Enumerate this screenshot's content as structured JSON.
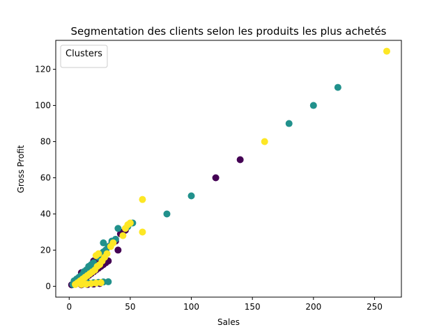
{
  "chart_data": {
    "type": "scatter",
    "title": "Segmentation des clients selon les produits les plus achetés",
    "xlabel": "Sales",
    "ylabel": "Gross Profit",
    "xlim": [
      -11,
      272
    ],
    "ylim": [
      -6,
      136
    ],
    "x_ticks": [
      0,
      50,
      100,
      150,
      200,
      250
    ],
    "y_ticks": [
      0,
      20,
      40,
      60,
      80,
      100,
      120
    ],
    "grid": false,
    "legend": {
      "title": "Clusters",
      "placement": "top-left",
      "entries": []
    },
    "colors": {
      "cluster_0": "#440154",
      "cluster_1": "#21918c",
      "cluster_2": "#fde725"
    },
    "series": [
      {
        "cluster": 0,
        "points": [
          [
            2,
            0.8
          ],
          [
            3,
            1
          ],
          [
            4,
            1.5
          ],
          [
            5,
            2
          ],
          [
            6,
            2.5
          ],
          [
            8,
            3
          ],
          [
            10,
            4
          ],
          [
            12,
            4.5
          ],
          [
            14,
            5
          ],
          [
            16,
            6
          ],
          [
            18,
            7
          ],
          [
            20,
            8
          ],
          [
            22,
            9
          ],
          [
            24,
            10
          ],
          [
            26,
            11
          ],
          [
            28,
            12
          ],
          [
            30,
            13
          ],
          [
            32,
            14
          ],
          [
            10,
            7.5
          ],
          [
            12,
            8
          ],
          [
            20,
            14
          ],
          [
            22,
            15
          ],
          [
            25,
            17
          ],
          [
            30,
            20
          ],
          [
            35,
            24
          ],
          [
            38,
            25
          ],
          [
            40,
            20
          ],
          [
            42,
            29
          ],
          [
            44,
            30
          ],
          [
            46,
            31
          ],
          [
            15,
            1
          ],
          [
            20,
            1.2
          ],
          [
            25,
            1.5
          ],
          [
            10,
            0.8
          ],
          [
            120,
            60
          ],
          [
            140,
            70
          ]
        ]
      },
      {
        "cluster": 1,
        "points": [
          [
            3,
            1
          ],
          [
            5,
            2
          ],
          [
            7,
            3
          ],
          [
            9,
            4
          ],
          [
            11,
            5
          ],
          [
            13,
            6
          ],
          [
            15,
            7
          ],
          [
            17,
            8
          ],
          [
            19,
            9
          ],
          [
            21,
            10
          ],
          [
            4,
            3
          ],
          [
            6,
            4
          ],
          [
            8,
            5
          ],
          [
            10,
            6
          ],
          [
            12,
            8
          ],
          [
            14,
            9
          ],
          [
            16,
            11
          ],
          [
            18,
            12
          ],
          [
            20,
            13
          ],
          [
            24,
            16
          ],
          [
            26,
            18
          ],
          [
            28,
            19
          ],
          [
            30,
            20
          ],
          [
            28,
            24
          ],
          [
            32,
            22
          ],
          [
            35,
            25
          ],
          [
            38,
            26
          ],
          [
            40,
            32
          ],
          [
            48,
            33
          ],
          [
            52,
            35
          ],
          [
            12,
            1.5
          ],
          [
            16,
            1.8
          ],
          [
            20,
            2
          ],
          [
            24,
            2.2
          ],
          [
            28,
            2.4
          ],
          [
            32,
            2.5
          ],
          [
            80,
            40
          ],
          [
            100,
            50
          ],
          [
            180,
            90
          ],
          [
            200,
            100
          ],
          [
            220,
            110
          ]
        ]
      },
      {
        "cluster": 2,
        "points": [
          [
            5,
            1
          ],
          [
            7,
            2
          ],
          [
            9,
            3
          ],
          [
            11,
            4
          ],
          [
            13,
            5
          ],
          [
            15,
            6
          ],
          [
            17,
            7
          ],
          [
            19,
            8
          ],
          [
            21,
            9
          ],
          [
            23,
            11
          ],
          [
            25,
            12
          ],
          [
            27,
            14
          ],
          [
            29,
            16
          ],
          [
            31,
            18
          ],
          [
            22,
            17
          ],
          [
            24,
            18
          ],
          [
            34,
            22
          ],
          [
            36,
            24
          ],
          [
            44,
            28
          ],
          [
            46,
            32
          ],
          [
            48,
            34
          ],
          [
            50,
            35
          ],
          [
            10,
            1
          ],
          [
            14,
            1.2
          ],
          [
            18,
            1.5
          ],
          [
            22,
            1.8
          ],
          [
            26,
            2
          ],
          [
            60,
            30
          ],
          [
            60,
            48
          ],
          [
            160,
            80
          ],
          [
            260,
            130
          ]
        ]
      }
    ]
  }
}
